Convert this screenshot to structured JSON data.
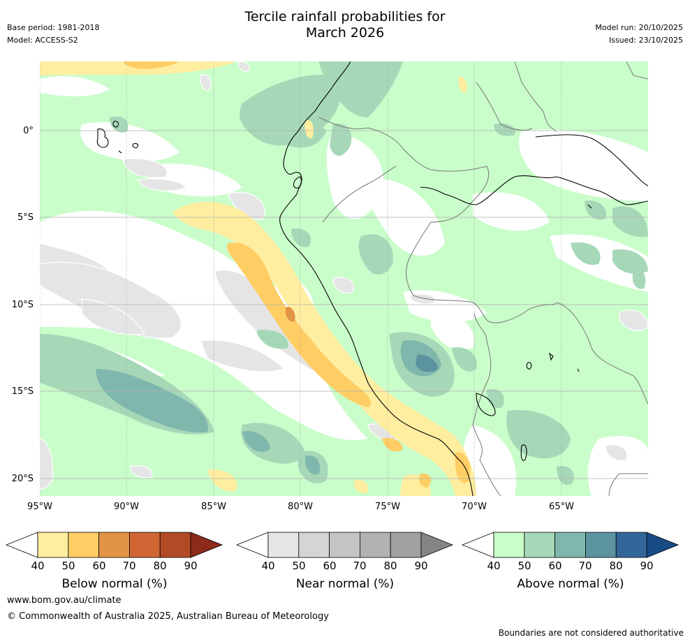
{
  "title_line1": "Tercile rainfall probabilities for",
  "title_line2": "March 2026",
  "base_period": "Base period: 1981-2018",
  "model": "Model: ACCESS-S2",
  "model_run": "Model run: 20/10/2025",
  "issued": "Issued: 23/10/2025",
  "lat_labels": [
    "0°",
    "5°S",
    "10°S",
    "15°S",
    "20°S"
  ],
  "lon_labels": [
    "95°W",
    "90°W",
    "85°W",
    "80°W",
    "75°W",
    "70°W",
    "65°W"
  ],
  "colorbars": [
    {
      "label": "Below normal (%)",
      "ticks": [
        "40",
        "50",
        "60",
        "70",
        "80",
        "90"
      ],
      "colors": [
        "#ffffff",
        "#ffeea0",
        "#fecd64",
        "#e29346",
        "#cf6633",
        "#b24a25",
        "#8c2a1c"
      ]
    },
    {
      "label": "Near normal (%)",
      "ticks": [
        "40",
        "50",
        "60",
        "70",
        "80",
        "90"
      ],
      "colors": [
        "#ffffff",
        "#e5e5e5",
        "#d5d5d5",
        "#c4c4c4",
        "#b2b2b2",
        "#a1a1a1",
        "#858585"
      ]
    },
    {
      "label": "Above normal (%)",
      "ticks": [
        "40",
        "50",
        "60",
        "70",
        "80",
        "90"
      ],
      "colors": [
        "#ffffff",
        "#c9fdca",
        "#a6d8b8",
        "#80b7ad",
        "#5b93a0",
        "#33679a",
        "#174c85"
      ]
    }
  ],
  "website": "www.bom.gov.au/climate",
  "copyright": "© Commonwealth of Australia 2025, Australian Bureau of Meteorology",
  "disclaimer": "Boundaries are not considered authoritative"
}
